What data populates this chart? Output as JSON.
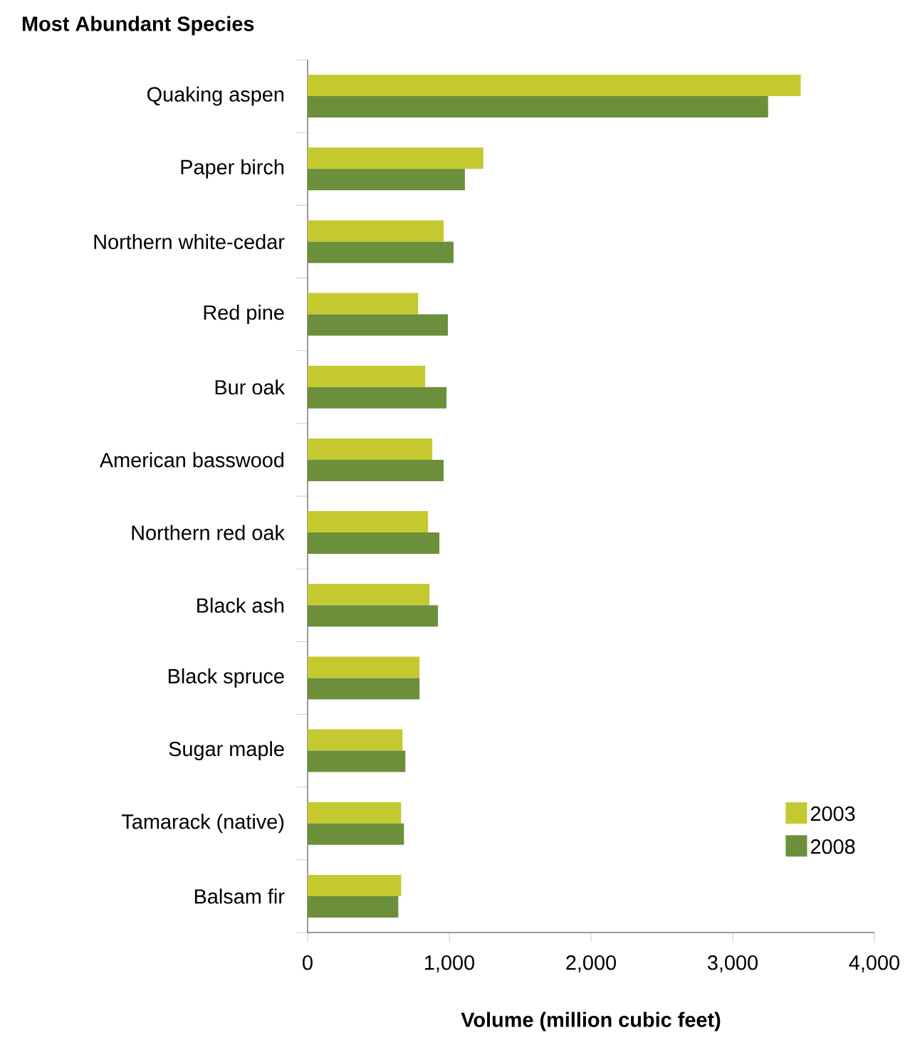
{
  "chart_data": {
    "type": "bar",
    "orientation": "horizontal",
    "title": "Most Abundant Species",
    "xlabel": "Volume (million cubic feet)",
    "categories": [
      "Quaking aspen",
      "Paper birch",
      "Northern white-cedar",
      "Red pine",
      "Bur oak",
      "American basswood",
      "Northern red oak",
      "Black ash",
      "Black spruce",
      "Sugar maple",
      "Tamarack (native)",
      "Balsam fir"
    ],
    "series": [
      {
        "name": "2003",
        "color": "#c3c92e",
        "values": [
          3480,
          1240,
          960,
          780,
          830,
          880,
          850,
          860,
          790,
          670,
          660,
          660
        ]
      },
      {
        "name": "2008",
        "color": "#6b8f3a",
        "values": [
          3250,
          1110,
          1030,
          990,
          980,
          960,
          930,
          920,
          790,
          690,
          680,
          640
        ]
      }
    ],
    "xlim": [
      0,
      4000
    ],
    "xticks": [
      0,
      {
        "value": 1000,
        "label": "1,000"
      },
      {
        "value": 2000,
        "label": "2,000"
      },
      {
        "value": 3000,
        "label": "3,000"
      },
      {
        "value": 4000,
        "label": "4,000"
      }
    ],
    "legend": "bottom right"
  }
}
